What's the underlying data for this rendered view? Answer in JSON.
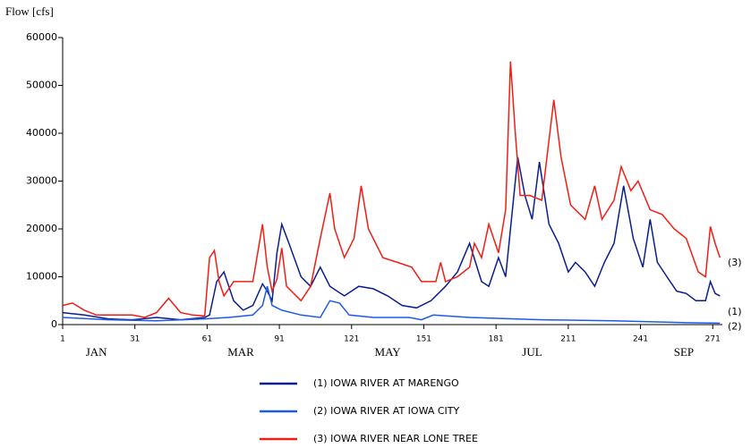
{
  "chart_data": {
    "type": "line",
    "y_label": "Flow [cfs]",
    "xlim": [
      1,
      275
    ],
    "ylim": [
      0,
      60000
    ],
    "xticks": [
      1,
      31,
      61,
      91,
      121,
      151,
      181,
      211,
      241,
      271
    ],
    "yticks": [
      0,
      10000,
      20000,
      30000,
      40000,
      50000,
      60000
    ],
    "month_labels": [
      {
        "value": 15,
        "label": "JAN"
      },
      {
        "value": 75,
        "label": "MAR"
      },
      {
        "value": 136,
        "label": "MAY"
      },
      {
        "value": 196,
        "label": "JUL"
      },
      {
        "value": 259,
        "label": "SEP"
      }
    ],
    "grid": false,
    "series": [
      {
        "name": "(1) IOWA RIVER AT MARENGO",
        "end_label": "(1)",
        "color": "#0a1e8c",
        "x": [
          1,
          10,
          20,
          30,
          40,
          50,
          60,
          62,
          65,
          68,
          72,
          76,
          80,
          84,
          86,
          88,
          90,
          92,
          95,
          100,
          104,
          108,
          112,
          118,
          124,
          130,
          136,
          142,
          148,
          154,
          160,
          165,
          170,
          175,
          178,
          182,
          185,
          188,
          190,
          193,
          196,
          199,
          203,
          207,
          211,
          214,
          218,
          222,
          226,
          230,
          234,
          238,
          242,
          245,
          248,
          252,
          256,
          260,
          264,
          268,
          270,
          272,
          274
        ],
        "values": [
          2500,
          2000,
          1200,
          1000,
          1500,
          1000,
          1500,
          2000,
          9000,
          11000,
          5000,
          3000,
          4000,
          8500,
          7000,
          5000,
          15000,
          21000,
          17000,
          10000,
          8000,
          12000,
          8000,
          6000,
          8000,
          7500,
          6000,
          4000,
          3500,
          5000,
          8000,
          11000,
          17000,
          9000,
          8000,
          14000,
          10000,
          25000,
          35000,
          27000,
          22000,
          34000,
          21000,
          17000,
          11000,
          13000,
          11000,
          8000,
          13000,
          17000,
          29000,
          18000,
          12000,
          22000,
          13000,
          10000,
          7000,
          6500,
          5000,
          5000,
          9000,
          6500,
          6000
        ]
      },
      {
        "name": "(2) IOWA RIVER AT IOWA CITY",
        "end_label": "(2)",
        "color": "#1e5ae6",
        "x": [
          1,
          20,
          40,
          60,
          70,
          80,
          84,
          86,
          88,
          92,
          100,
          108,
          112,
          116,
          120,
          130,
          145,
          150,
          155,
          170,
          200,
          230,
          260,
          274
        ],
        "values": [
          1500,
          1000,
          800,
          1200,
          1500,
          2000,
          4000,
          8000,
          4000,
          3000,
          2000,
          1500,
          5000,
          4500,
          2000,
          1500,
          1500,
          1000,
          2000,
          1500,
          1000,
          800,
          400,
          300
        ]
      },
      {
        "name": "(3) IOWA RIVER NEAR LONE TREE",
        "end_label": "(3)",
        "color": "#f01e14",
        "x": [
          1,
          5,
          10,
          15,
          20,
          30,
          35,
          40,
          45,
          50,
          55,
          60,
          62,
          64,
          66,
          68,
          72,
          80,
          84,
          86,
          88,
          90,
          92,
          94,
          100,
          104,
          108,
          112,
          114,
          118,
          122,
          125,
          128,
          134,
          140,
          146,
          150,
          156,
          158,
          160,
          165,
          170,
          172,
          175,
          178,
          182,
          185,
          187,
          189,
          191,
          195,
          200,
          205,
          208,
          212,
          218,
          222,
          225,
          230,
          233,
          237,
          240,
          245,
          250,
          255,
          260,
          265,
          268,
          270,
          272,
          274
        ],
        "values": [
          4000,
          4500,
          3000,
          2000,
          2000,
          2000,
          1500,
          2500,
          5500,
          2500,
          2000,
          1800,
          14000,
          15500,
          9000,
          6000,
          9000,
          9000,
          21000,
          12000,
          7000,
          9500,
          16000,
          8000,
          5000,
          8000,
          18000,
          27500,
          20000,
          14000,
          18000,
          29000,
          20000,
          14000,
          13000,
          12000,
          9000,
          9000,
          13000,
          9000,
          10000,
          12000,
          17000,
          14000,
          21000,
          15000,
          24000,
          55000,
          40000,
          27000,
          27000,
          26000,
          47000,
          35000,
          25000,
          22000,
          29000,
          22000,
          26000,
          33000,
          28000,
          30000,
          24000,
          23000,
          20000,
          18000,
          11000,
          10000,
          20500,
          17000,
          14000
        ]
      }
    ]
  }
}
